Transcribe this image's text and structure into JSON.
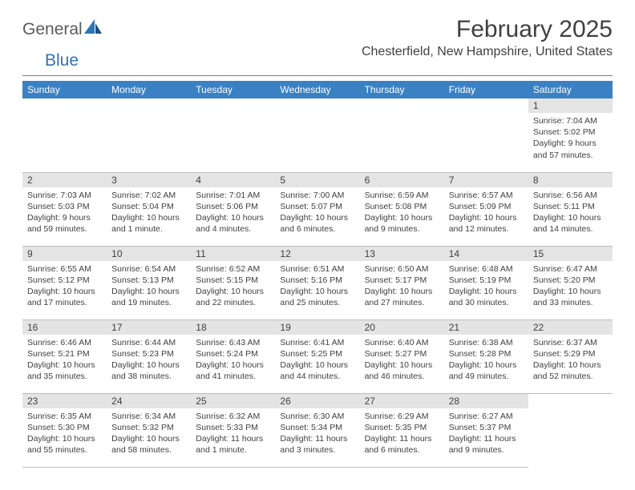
{
  "logo": {
    "general": "General",
    "blue": "Blue"
  },
  "title": "February 2025",
  "location": "Chesterfield, New Hampshire, United States",
  "weekday_header": {
    "bg": "#3a81c4",
    "fg": "#ffffff"
  },
  "daynum_bar_bg": "#e4e4e4",
  "weekdays": [
    "Sunday",
    "Monday",
    "Tuesday",
    "Wednesday",
    "Thursday",
    "Friday",
    "Saturday"
  ],
  "weeks": [
    [
      null,
      null,
      null,
      null,
      null,
      null,
      {
        "n": "1",
        "sunrise": "Sunrise: 7:04 AM",
        "sunset": "Sunset: 5:02 PM",
        "day1": "Daylight: 9 hours",
        "day2": "and 57 minutes."
      }
    ],
    [
      {
        "n": "2",
        "sunrise": "Sunrise: 7:03 AM",
        "sunset": "Sunset: 5:03 PM",
        "day1": "Daylight: 9 hours",
        "day2": "and 59 minutes."
      },
      {
        "n": "3",
        "sunrise": "Sunrise: 7:02 AM",
        "sunset": "Sunset: 5:04 PM",
        "day1": "Daylight: 10 hours",
        "day2": "and 1 minute."
      },
      {
        "n": "4",
        "sunrise": "Sunrise: 7:01 AM",
        "sunset": "Sunset: 5:06 PM",
        "day1": "Daylight: 10 hours",
        "day2": "and 4 minutes."
      },
      {
        "n": "5",
        "sunrise": "Sunrise: 7:00 AM",
        "sunset": "Sunset: 5:07 PM",
        "day1": "Daylight: 10 hours",
        "day2": "and 6 minutes."
      },
      {
        "n": "6",
        "sunrise": "Sunrise: 6:59 AM",
        "sunset": "Sunset: 5:08 PM",
        "day1": "Daylight: 10 hours",
        "day2": "and 9 minutes."
      },
      {
        "n": "7",
        "sunrise": "Sunrise: 6:57 AM",
        "sunset": "Sunset: 5:09 PM",
        "day1": "Daylight: 10 hours",
        "day2": "and 12 minutes."
      },
      {
        "n": "8",
        "sunrise": "Sunrise: 6:56 AM",
        "sunset": "Sunset: 5:11 PM",
        "day1": "Daylight: 10 hours",
        "day2": "and 14 minutes."
      }
    ],
    [
      {
        "n": "9",
        "sunrise": "Sunrise: 6:55 AM",
        "sunset": "Sunset: 5:12 PM",
        "day1": "Daylight: 10 hours",
        "day2": "and 17 minutes."
      },
      {
        "n": "10",
        "sunrise": "Sunrise: 6:54 AM",
        "sunset": "Sunset: 5:13 PM",
        "day1": "Daylight: 10 hours",
        "day2": "and 19 minutes."
      },
      {
        "n": "11",
        "sunrise": "Sunrise: 6:52 AM",
        "sunset": "Sunset: 5:15 PM",
        "day1": "Daylight: 10 hours",
        "day2": "and 22 minutes."
      },
      {
        "n": "12",
        "sunrise": "Sunrise: 6:51 AM",
        "sunset": "Sunset: 5:16 PM",
        "day1": "Daylight: 10 hours",
        "day2": "and 25 minutes."
      },
      {
        "n": "13",
        "sunrise": "Sunrise: 6:50 AM",
        "sunset": "Sunset: 5:17 PM",
        "day1": "Daylight: 10 hours",
        "day2": "and 27 minutes."
      },
      {
        "n": "14",
        "sunrise": "Sunrise: 6:48 AM",
        "sunset": "Sunset: 5:19 PM",
        "day1": "Daylight: 10 hours",
        "day2": "and 30 minutes."
      },
      {
        "n": "15",
        "sunrise": "Sunrise: 6:47 AM",
        "sunset": "Sunset: 5:20 PM",
        "day1": "Daylight: 10 hours",
        "day2": "and 33 minutes."
      }
    ],
    [
      {
        "n": "16",
        "sunrise": "Sunrise: 6:46 AM",
        "sunset": "Sunset: 5:21 PM",
        "day1": "Daylight: 10 hours",
        "day2": "and 35 minutes."
      },
      {
        "n": "17",
        "sunrise": "Sunrise: 6:44 AM",
        "sunset": "Sunset: 5:23 PM",
        "day1": "Daylight: 10 hours",
        "day2": "and 38 minutes."
      },
      {
        "n": "18",
        "sunrise": "Sunrise: 6:43 AM",
        "sunset": "Sunset: 5:24 PM",
        "day1": "Daylight: 10 hours",
        "day2": "and 41 minutes."
      },
      {
        "n": "19",
        "sunrise": "Sunrise: 6:41 AM",
        "sunset": "Sunset: 5:25 PM",
        "day1": "Daylight: 10 hours",
        "day2": "and 44 minutes."
      },
      {
        "n": "20",
        "sunrise": "Sunrise: 6:40 AM",
        "sunset": "Sunset: 5:27 PM",
        "day1": "Daylight: 10 hours",
        "day2": "and 46 minutes."
      },
      {
        "n": "21",
        "sunrise": "Sunrise: 6:38 AM",
        "sunset": "Sunset: 5:28 PM",
        "day1": "Daylight: 10 hours",
        "day2": "and 49 minutes."
      },
      {
        "n": "22",
        "sunrise": "Sunrise: 6:37 AM",
        "sunset": "Sunset: 5:29 PM",
        "day1": "Daylight: 10 hours",
        "day2": "and 52 minutes."
      }
    ],
    [
      {
        "n": "23",
        "sunrise": "Sunrise: 6:35 AM",
        "sunset": "Sunset: 5:30 PM",
        "day1": "Daylight: 10 hours",
        "day2": "and 55 minutes."
      },
      {
        "n": "24",
        "sunrise": "Sunrise: 6:34 AM",
        "sunset": "Sunset: 5:32 PM",
        "day1": "Daylight: 10 hours",
        "day2": "and 58 minutes."
      },
      {
        "n": "25",
        "sunrise": "Sunrise: 6:32 AM",
        "sunset": "Sunset: 5:33 PM",
        "day1": "Daylight: 11 hours",
        "day2": "and 1 minute."
      },
      {
        "n": "26",
        "sunrise": "Sunrise: 6:30 AM",
        "sunset": "Sunset: 5:34 PM",
        "day1": "Daylight: 11 hours",
        "day2": "and 3 minutes."
      },
      {
        "n": "27",
        "sunrise": "Sunrise: 6:29 AM",
        "sunset": "Sunset: 5:35 PM",
        "day1": "Daylight: 11 hours",
        "day2": "and 6 minutes."
      },
      {
        "n": "28",
        "sunrise": "Sunrise: 6:27 AM",
        "sunset": "Sunset: 5:37 PM",
        "day1": "Daylight: 11 hours",
        "day2": "and 9 minutes."
      },
      null
    ]
  ]
}
